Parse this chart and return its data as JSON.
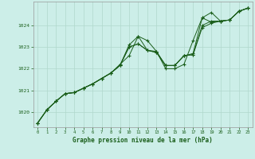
{
  "bg_color": "#cceee8",
  "grid_color": "#b0d8cc",
  "line_color": "#1a5e1a",
  "marker_color": "#1a5e1a",
  "title": "Graphe pression niveau de la mer (hPa)",
  "title_color": "#1a5e1a",
  "xlim": [
    -0.5,
    23.5
  ],
  "ylim": [
    1019.3,
    1025.1
  ],
  "yticks": [
    1020,
    1021,
    1022,
    1023,
    1024
  ],
  "xticks": [
    0,
    1,
    2,
    3,
    4,
    5,
    6,
    7,
    8,
    9,
    10,
    11,
    12,
    13,
    14,
    15,
    16,
    17,
    18,
    19,
    20,
    21,
    22,
    23
  ],
  "series": [
    [
      1019.5,
      1020.1,
      1020.5,
      1020.85,
      1020.9,
      1021.1,
      1021.3,
      1021.55,
      1021.8,
      1022.2,
      1022.6,
      1023.5,
      1023.3,
      1022.8,
      1022.0,
      1022.0,
      1022.2,
      1023.3,
      1024.35,
      1024.15,
      1024.2,
      1024.25,
      1024.65,
      1024.8
    ],
    [
      1019.5,
      1020.1,
      1020.5,
      1020.85,
      1020.9,
      1021.1,
      1021.3,
      1021.55,
      1021.8,
      1022.15,
      1023.1,
      1023.5,
      1022.85,
      1022.8,
      1022.15,
      1022.15,
      1022.6,
      1022.7,
      1024.35,
      1024.6,
      1024.2,
      1024.25,
      1024.65,
      1024.8
    ],
    [
      1019.5,
      1020.1,
      1020.5,
      1020.85,
      1020.9,
      1021.1,
      1021.3,
      1021.55,
      1021.8,
      1022.15,
      1023.0,
      1023.15,
      1022.85,
      1022.75,
      1022.15,
      1022.15,
      1022.6,
      1022.65,
      1024.0,
      1024.2,
      1024.2,
      1024.25,
      1024.65,
      1024.8
    ],
    [
      1019.5,
      1020.1,
      1020.5,
      1020.85,
      1020.9,
      1021.1,
      1021.3,
      1021.55,
      1021.8,
      1022.15,
      1023.0,
      1023.15,
      1022.85,
      1022.75,
      1022.15,
      1022.15,
      1022.6,
      1022.65,
      1023.9,
      1024.1,
      1024.2,
      1024.25,
      1024.65,
      1024.8
    ]
  ]
}
